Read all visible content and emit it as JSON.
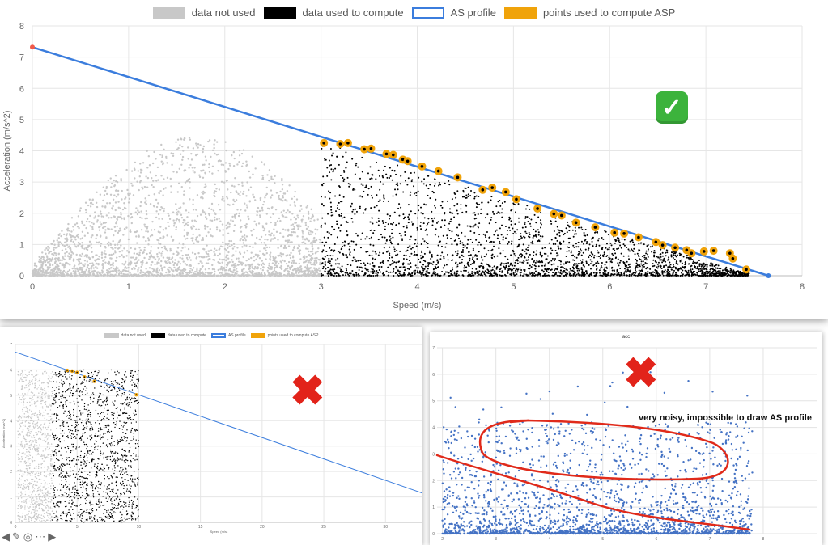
{
  "chart_data": [
    {
      "type": "scatter",
      "legend": [
        {
          "label": "data not used",
          "color": "#c8c8c8",
          "style": "fill"
        },
        {
          "label": "data used to compute",
          "color": "#000000",
          "style": "fill"
        },
        {
          "label": "AS profile",
          "color": "#3b7ddd",
          "style": "outline"
        },
        {
          "label": "points used to compute ASP",
          "color": "#f0a30a",
          "style": "fill"
        }
      ],
      "xlabel": "Speed (m/s)",
      "ylabel": "Acceleration (m/s^2)",
      "xlim": [
        0,
        8
      ],
      "ylim": [
        0,
        8
      ],
      "xticks": [
        0,
        1,
        2,
        3,
        4,
        5,
        6,
        7,
        8
      ],
      "yticks": [
        0,
        1,
        2,
        3,
        4,
        5,
        6,
        7,
        8
      ],
      "grid": true,
      "legend_position": "top-center",
      "series": [
        {
          "name": "AS profile",
          "kind": "line",
          "x": [
            0,
            7.65
          ],
          "y": [
            7.32,
            0
          ]
        },
        {
          "name": "points used to compute ASP",
          "kind": "scatter",
          "x": [
            3.03,
            3.2,
            3.28,
            3.45,
            3.52,
            3.68,
            3.75,
            3.85,
            3.9,
            4.05,
            4.22,
            4.42,
            4.68,
            4.78,
            4.92,
            5.03,
            5.25,
            5.42,
            5.5,
            5.65,
            5.85,
            6.05,
            6.15,
            6.3,
            6.48,
            6.55,
            6.68,
            6.8,
            6.85,
            6.98,
            7.08,
            7.25,
            7.28,
            7.42
          ],
          "y": [
            4.25,
            4.22,
            4.25,
            4.05,
            4.07,
            3.9,
            3.87,
            3.72,
            3.67,
            3.5,
            3.35,
            3.15,
            2.75,
            2.82,
            2.68,
            2.45,
            2.15,
            1.98,
            1.93,
            1.7,
            1.55,
            1.38,
            1.35,
            1.23,
            1.08,
            0.98,
            0.9,
            0.82,
            0.72,
            0.78,
            0.8,
            0.72,
            0.55,
            0.2
          ]
        },
        {
          "name": "data used to compute",
          "kind": "scatter",
          "x_range": [
            3.0,
            7.45
          ],
          "y_range": [
            0,
            4.3
          ],
          "approx_points": 2600
        },
        {
          "name": "data not used",
          "kind": "scatter",
          "x_range": [
            0,
            3.0
          ],
          "y_range": [
            0,
            4.5
          ],
          "approx_points": 2600
        }
      ]
    },
    {
      "type": "scatter",
      "legend": [
        {
          "label": "data not used",
          "color": "#c8c8c8",
          "style": "fill"
        },
        {
          "label": "data used to compute",
          "color": "#000000",
          "style": "fill"
        },
        {
          "label": "AS profile",
          "color": "#3b7ddd",
          "style": "outline"
        },
        {
          "label": "points used to compute ASP",
          "color": "#f0a30a",
          "style": "fill"
        }
      ],
      "xlabel": "Speed (m/s)",
      "ylabel": "Acceleration (m/s^2)",
      "xlim": [
        0,
        33
      ],
      "ylim": [
        0,
        7
      ],
      "xticks": [
        0,
        5,
        10,
        15,
        20,
        25,
        30
      ],
      "yticks": [
        0,
        1,
        2,
        3,
        4,
        5,
        6,
        7
      ],
      "series": [
        {
          "name": "AS profile",
          "kind": "line",
          "x": [
            0,
            33
          ],
          "y": [
            6.7,
            1.15
          ]
        },
        {
          "name": "points used to compute ASP",
          "kind": "scatter",
          "x": [
            4.2,
            4.6,
            5.0,
            5.6,
            6.4,
            9.8
          ],
          "y": [
            5.98,
            5.95,
            5.9,
            5.72,
            5.55,
            5.02
          ]
        },
        {
          "name": "data used to compute",
          "kind": "scatter",
          "x_range": [
            3.0,
            10.0
          ],
          "y_range": [
            0,
            6.0
          ],
          "approx_points": 1500
        },
        {
          "name": "data not used",
          "kind": "scatter",
          "x_range": [
            0.2,
            3.0
          ],
          "y_range": [
            0,
            6.0
          ],
          "approx_points": 1000
        }
      ]
    },
    {
      "type": "scatter",
      "title": "acc",
      "ylim": [
        0,
        7
      ],
      "yticks": [
        0,
        1,
        2,
        3,
        4,
        5,
        6,
        7
      ],
      "xticks": [
        2,
        3,
        4,
        5,
        6,
        7,
        8
      ],
      "series": [
        {
          "name": "",
          "kind": "scatter",
          "color": "#4472c4",
          "x_range": [
            2.0,
            7.8
          ],
          "y_range": [
            0,
            6.1
          ],
          "approx_points": 2200
        }
      ]
    }
  ],
  "annotations": {
    "check": "✓",
    "cross": "✖",
    "noisy_note": "very noisy, impossible to draw AS profile"
  },
  "toolbar": {
    "back": "◀",
    "edit": "✎",
    "zoom": "◎",
    "more": "⋯",
    "forward": "▶"
  }
}
